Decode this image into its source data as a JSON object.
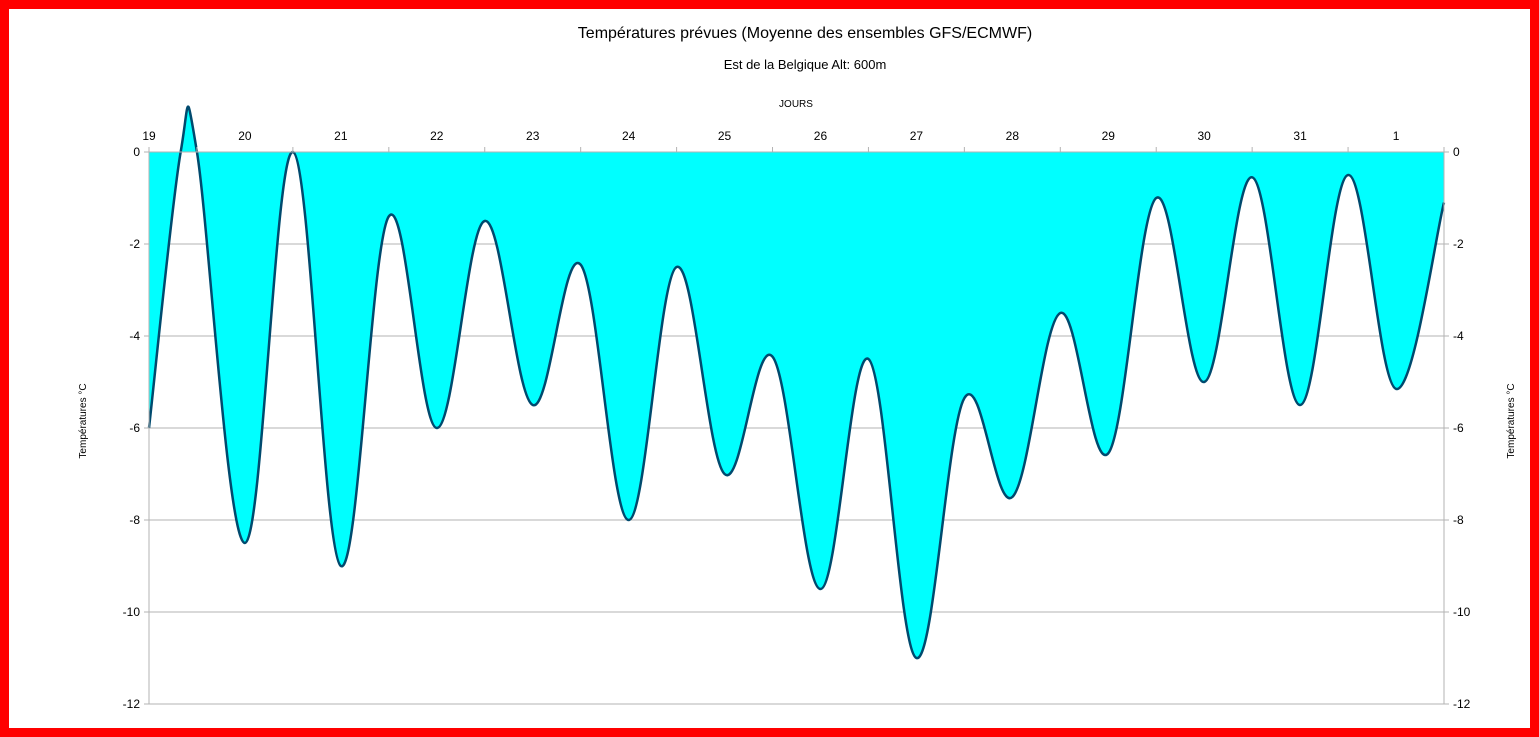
{
  "chart_data": {
    "type": "area",
    "title": "Températures prévues (Moyenne des ensembles GFS/ECMWF)",
    "subtitle": "Est de la Belgique Alt: 600m",
    "xlabel": "JOURS",
    "ylabel": "Températures °C",
    "ylabel_right": "Températures °C",
    "x_axis_position": "top",
    "categories": [
      "19",
      "20",
      "21",
      "22",
      "23",
      "24",
      "25",
      "26",
      "27",
      "28",
      "29",
      "30",
      "31",
      "1"
    ],
    "ylim": [
      -12,
      0
    ],
    "yticks": [
      0,
      -2,
      -4,
      -6,
      -8,
      -10,
      -12
    ],
    "grid": true,
    "x": [
      0.0,
      0.33,
      0.5,
      1.0,
      1.5,
      2.0,
      2.5,
      3.0,
      3.5,
      4.0,
      4.5,
      5.0,
      5.5,
      6.0,
      6.5,
      7.0,
      7.5,
      8.0,
      8.5,
      9.0,
      9.5,
      10.0,
      10.5,
      11.0,
      11.5,
      12.0,
      12.5,
      13.0,
      13.5
    ],
    "series": [
      {
        "values": [
          -6.0,
          0.0,
          0.0,
          -8.5,
          0.0,
          -9.0,
          -1.4,
          -6.0,
          -1.5,
          -5.5,
          -2.45,
          -8.0,
          -2.5,
          -7.0,
          -4.45,
          -9.5,
          -4.5,
          -11.0,
          -5.35,
          -7.5,
          -3.5,
          -6.55,
          -1.0,
          -5.0,
          -0.55,
          -5.5,
          -0.5,
          -5.15,
          -1.1
        ]
      }
    ],
    "colors": {
      "fill": "#00ffff",
      "line": "#004a6e",
      "grid": "#b3b3b3",
      "frame": "#ff0000"
    }
  }
}
